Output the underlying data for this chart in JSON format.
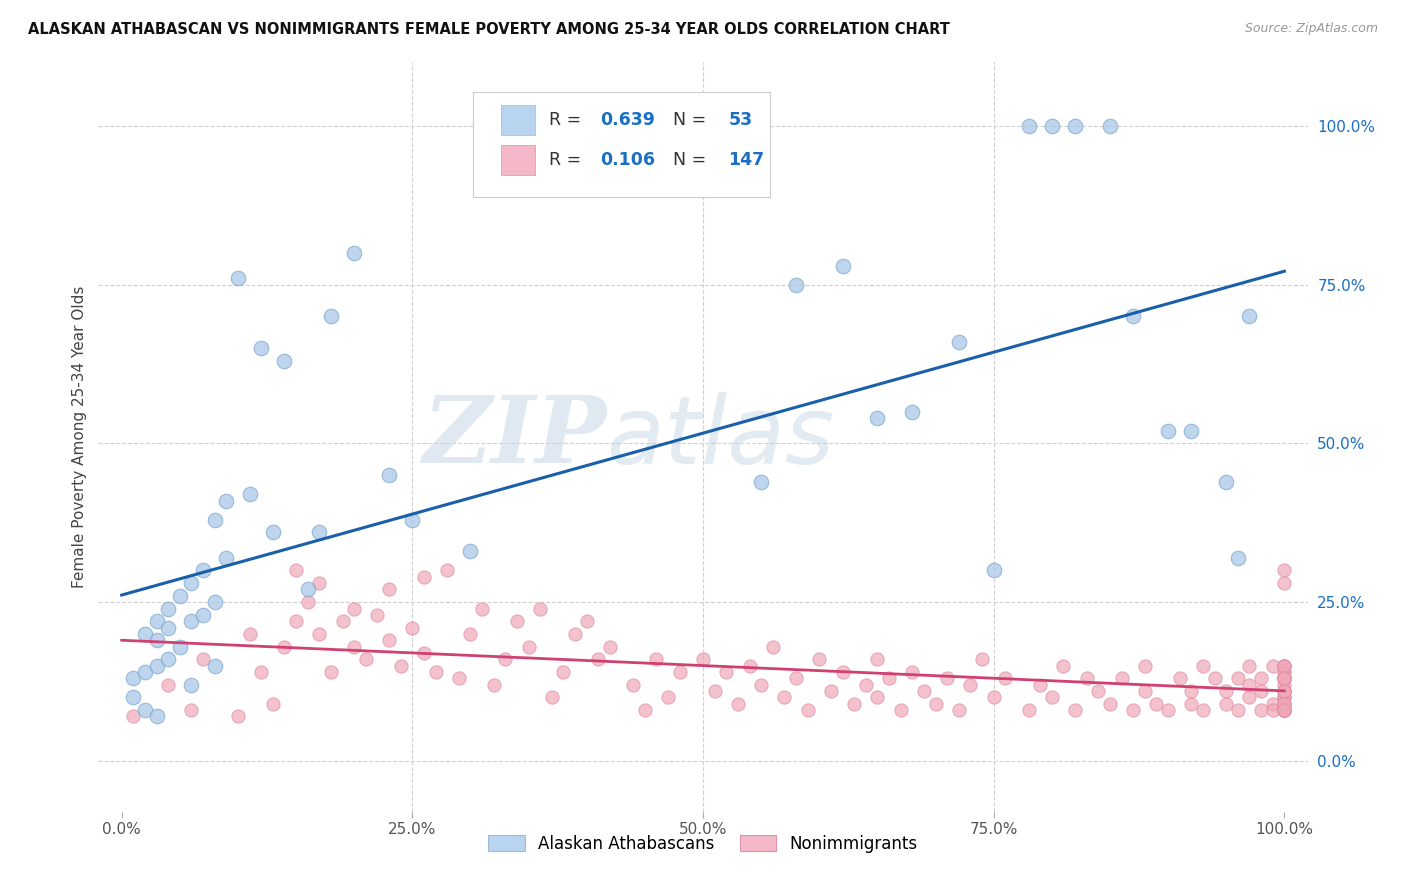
{
  "title": "ALASKAN ATHABASCAN VS NONIMMIGRANTS FEMALE POVERTY AMONG 25-34 YEAR OLDS CORRELATION CHART",
  "source": "Source: ZipAtlas.com",
  "ylabel": "Female Poverty Among 25-34 Year Olds",
  "background_color": "#ffffff",
  "grid_color": "#d0d0d0",
  "blue_R": 0.639,
  "blue_N": 53,
  "pink_R": 0.106,
  "pink_N": 147,
  "blue_color": "#a8c8e8",
  "pink_color": "#f0a8b8",
  "blue_line_color": "#1a5faa",
  "pink_line_color": "#d04070",
  "blue_x": [
    0.01,
    0.01,
    0.02,
    0.02,
    0.02,
    0.03,
    0.03,
    0.03,
    0.03,
    0.04,
    0.04,
    0.04,
    0.05,
    0.05,
    0.06,
    0.06,
    0.06,
    0.07,
    0.07,
    0.08,
    0.08,
    0.08,
    0.09,
    0.09,
    0.1,
    0.11,
    0.12,
    0.13,
    0.14,
    0.16,
    0.17,
    0.18,
    0.2,
    0.23,
    0.25,
    0.3,
    0.55,
    0.58,
    0.62,
    0.65,
    0.68,
    0.72,
    0.75,
    0.78,
    0.8,
    0.82,
    0.85,
    0.87,
    0.9,
    0.92,
    0.95,
    0.96,
    0.97
  ],
  "blue_y": [
    0.13,
    0.1,
    0.2,
    0.14,
    0.08,
    0.22,
    0.19,
    0.15,
    0.07,
    0.24,
    0.21,
    0.16,
    0.26,
    0.18,
    0.28,
    0.22,
    0.12,
    0.3,
    0.23,
    0.38,
    0.25,
    0.15,
    0.41,
    0.32,
    0.76,
    0.42,
    0.65,
    0.36,
    0.63,
    0.27,
    0.36,
    0.7,
    0.8,
    0.45,
    0.38,
    0.33,
    0.44,
    0.75,
    0.78,
    0.54,
    0.55,
    0.66,
    0.3,
    1.0,
    1.0,
    1.0,
    1.0,
    0.7,
    0.52,
    0.52,
    0.44,
    0.32,
    0.7
  ],
  "pink_x": [
    0.01,
    0.04,
    0.06,
    0.07,
    0.1,
    0.11,
    0.12,
    0.13,
    0.14,
    0.15,
    0.15,
    0.16,
    0.17,
    0.17,
    0.18,
    0.19,
    0.2,
    0.2,
    0.21,
    0.22,
    0.23,
    0.23,
    0.24,
    0.25,
    0.26,
    0.26,
    0.27,
    0.28,
    0.29,
    0.3,
    0.31,
    0.32,
    0.33,
    0.34,
    0.35,
    0.36,
    0.37,
    0.38,
    0.39,
    0.4,
    0.41,
    0.42,
    0.44,
    0.45,
    0.46,
    0.47,
    0.48,
    0.5,
    0.51,
    0.52,
    0.53,
    0.54,
    0.55,
    0.56,
    0.57,
    0.58,
    0.59,
    0.6,
    0.61,
    0.62,
    0.63,
    0.64,
    0.65,
    0.65,
    0.66,
    0.67,
    0.68,
    0.69,
    0.7,
    0.71,
    0.72,
    0.73,
    0.74,
    0.75,
    0.76,
    0.78,
    0.79,
    0.8,
    0.81,
    0.82,
    0.83,
    0.84,
    0.85,
    0.86,
    0.87,
    0.88,
    0.88,
    0.89,
    0.9,
    0.91,
    0.92,
    0.92,
    0.93,
    0.93,
    0.94,
    0.95,
    0.95,
    0.96,
    0.96,
    0.97,
    0.97,
    0.97,
    0.98,
    0.98,
    0.98,
    0.99,
    0.99,
    0.99,
    1.0,
    1.0,
    1.0,
    1.0,
    1.0,
    1.0,
    1.0,
    1.0,
    1.0,
    1.0,
    1.0,
    1.0,
    1.0,
    1.0,
    1.0,
    1.0,
    1.0,
    1.0,
    1.0,
    1.0,
    1.0,
    1.0,
    1.0,
    1.0,
    1.0,
    1.0,
    1.0,
    1.0,
    1.0,
    1.0,
    1.0,
    1.0,
    1.0,
    1.0,
    1.0,
    1.0
  ],
  "pink_y": [
    0.07,
    0.12,
    0.08,
    0.16,
    0.07,
    0.2,
    0.14,
    0.09,
    0.18,
    0.22,
    0.3,
    0.25,
    0.2,
    0.28,
    0.14,
    0.22,
    0.24,
    0.18,
    0.16,
    0.23,
    0.19,
    0.27,
    0.15,
    0.21,
    0.17,
    0.29,
    0.14,
    0.3,
    0.13,
    0.2,
    0.24,
    0.12,
    0.16,
    0.22,
    0.18,
    0.24,
    0.1,
    0.14,
    0.2,
    0.22,
    0.16,
    0.18,
    0.12,
    0.08,
    0.16,
    0.1,
    0.14,
    0.16,
    0.11,
    0.14,
    0.09,
    0.15,
    0.12,
    0.18,
    0.1,
    0.13,
    0.08,
    0.16,
    0.11,
    0.14,
    0.09,
    0.12,
    0.16,
    0.1,
    0.13,
    0.08,
    0.14,
    0.11,
    0.09,
    0.13,
    0.08,
    0.12,
    0.16,
    0.1,
    0.13,
    0.08,
    0.12,
    0.1,
    0.15,
    0.08,
    0.13,
    0.11,
    0.09,
    0.13,
    0.08,
    0.11,
    0.15,
    0.09,
    0.08,
    0.13,
    0.11,
    0.09,
    0.15,
    0.08,
    0.13,
    0.11,
    0.09,
    0.08,
    0.13,
    0.15,
    0.1,
    0.12,
    0.08,
    0.13,
    0.11,
    0.09,
    0.15,
    0.08,
    0.13,
    0.11,
    0.09,
    0.13,
    0.08,
    0.11,
    0.15,
    0.1,
    0.08,
    0.13,
    0.11,
    0.09,
    0.15,
    0.08,
    0.28,
    0.14,
    0.12,
    0.1,
    0.14,
    0.08,
    0.15,
    0.13,
    0.1,
    0.11,
    0.08,
    0.13,
    0.11,
    0.09,
    0.15,
    0.08,
    0.13,
    0.11,
    0.09,
    0.13,
    0.08,
    0.3
  ],
  "xtick_labels": [
    "0.0%",
    "",
    "25.0%",
    "",
    "50.0%",
    "",
    "75.0%",
    "",
    "100.0%"
  ],
  "xtick_vals": [
    0.0,
    0.125,
    0.25,
    0.375,
    0.5,
    0.625,
    0.75,
    0.875,
    1.0
  ],
  "ytick_labels_right": [
    "0.0%",
    "25.0%",
    "50.0%",
    "75.0%",
    "100.0%"
  ],
  "ytick_positions_right": [
    0.0,
    0.25,
    0.5,
    0.75,
    1.0
  ],
  "legend_label_blue": "Alaskan Athabascans",
  "legend_label_pink": "Nonimmigrants",
  "watermark_zip": "ZIP",
  "watermark_atlas": "atlas"
}
